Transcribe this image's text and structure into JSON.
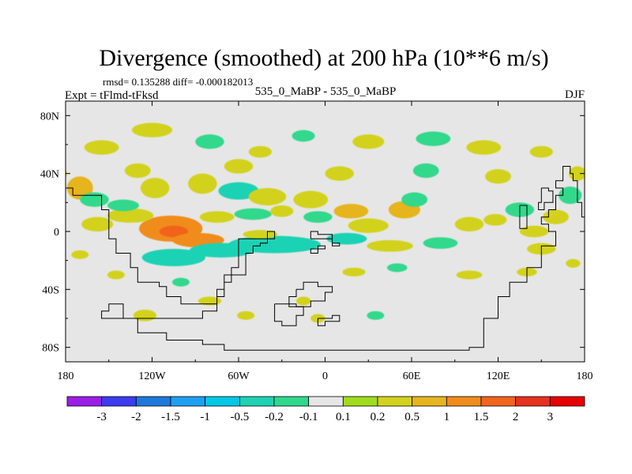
{
  "chart_data": {
    "type": "heatmap",
    "title": "Divergence (smoothed) at 200 hPa (10**6 m/s)",
    "stats_line": "rmsd= 0.135288 diff= -0.000182013",
    "left_label": "Expt = tFlmd-tFksd",
    "center_label": "535_0_MaBP - 535_0_MaBP",
    "right_label": "DJF",
    "x_ticks": [
      "180",
      "120W",
      "60W",
      "0",
      "60E",
      "120E",
      "180"
    ],
    "x_tick_values": [
      -180,
      -120,
      -60,
      0,
      60,
      120,
      180
    ],
    "y_ticks": [
      "80N",
      "40N",
      "0",
      "40S",
      "80S"
    ],
    "y_tick_values": [
      80,
      40,
      0,
      -40,
      -80
    ],
    "xlim": [
      -180,
      180
    ],
    "ylim": [
      -90,
      90
    ],
    "colorbar": {
      "labels": [
        "-3",
        "-2",
        "-1.5",
        "-1",
        "-0.5",
        "-0.2",
        "-0.1",
        "0.1",
        "0.2",
        "0.5",
        "1",
        "1.5",
        "2",
        "3"
      ],
      "colors": [
        "#9b1ee6",
        "#3c3cf0",
        "#1e78dc",
        "#1ea0f0",
        "#00c8e6",
        "#1ed2b4",
        "#30d88c",
        "#e6e6e6",
        "#a0dc1e",
        "#d2d21e",
        "#e6b41e",
        "#f08c1e",
        "#f0641e",
        "#e6321e",
        "#e60000"
      ]
    },
    "field_blobs": [
      {
        "lon": -107,
        "lat": 2,
        "rx": 22,
        "ry": 9,
        "value": 1.2
      },
      {
        "lon": -105,
        "lat": 0,
        "rx": 10,
        "ry": 4,
        "value": 1.6
      },
      {
        "lon": -135,
        "lat": 11,
        "rx": 16,
        "ry": 5,
        "value": 0.4
      },
      {
        "lon": -140,
        "lat": 18,
        "rx": 11,
        "ry": 4,
        "value": -0.15
      },
      {
        "lon": -158,
        "lat": 5,
        "rx": 11,
        "ry": 5,
        "value": 0.4
      },
      {
        "lon": -170,
        "lat": 30,
        "rx": 9,
        "ry": 8,
        "value": 0.6
      },
      {
        "lon": -160,
        "lat": 22,
        "rx": 10,
        "ry": 5,
        "value": -0.15
      },
      {
        "lon": -88,
        "lat": -6,
        "rx": 18,
        "ry": 5,
        "value": 1.0
      },
      {
        "lon": -72,
        "lat": -13,
        "rx": 22,
        "ry": 5,
        "value": -0.3
      },
      {
        "lon": -105,
        "lat": -18,
        "rx": 22,
        "ry": 6,
        "value": -0.3
      },
      {
        "lon": -35,
        "lat": -9,
        "rx": 32,
        "ry": 6,
        "value": -0.3
      },
      {
        "lon": -45,
        "lat": -2,
        "rx": 12,
        "ry": 3,
        "value": 0.3
      },
      {
        "lon": -118,
        "lat": 30,
        "rx": 10,
        "ry": 7,
        "value": 0.4
      },
      {
        "lon": -85,
        "lat": 33,
        "rx": 10,
        "ry": 7,
        "value": 0.4
      },
      {
        "lon": -60,
        "lat": 28,
        "rx": 14,
        "ry": 6,
        "value": -0.3
      },
      {
        "lon": -40,
        "lat": 24,
        "rx": 13,
        "ry": 6,
        "value": 0.4
      },
      {
        "lon": -10,
        "lat": 22,
        "rx": 12,
        "ry": 6,
        "value": 0.3
      },
      {
        "lon": -75,
        "lat": 10,
        "rx": 12,
        "ry": 4,
        "value": 0.3
      },
      {
        "lon": -50,
        "lat": 12,
        "rx": 13,
        "ry": 4,
        "value": -0.15
      },
      {
        "lon": -30,
        "lat": 14,
        "rx": 8,
        "ry": 4,
        "value": 0.3
      },
      {
        "lon": -5,
        "lat": 10,
        "rx": 10,
        "ry": 4,
        "value": -0.15
      },
      {
        "lon": 18,
        "lat": 14,
        "rx": 12,
        "ry": 5,
        "value": 0.5
      },
      {
        "lon": 30,
        "lat": 4,
        "rx": 14,
        "ry": 5,
        "value": 0.4
      },
      {
        "lon": 15,
        "lat": -5,
        "rx": 14,
        "ry": 4,
        "value": -0.3
      },
      {
        "lon": 55,
        "lat": 15,
        "rx": 11,
        "ry": 6,
        "value": 0.5
      },
      {
        "lon": 62,
        "lat": 22,
        "rx": 9,
        "ry": 5,
        "value": -0.15
      },
      {
        "lon": 45,
        "lat": -10,
        "rx": 16,
        "ry": 4,
        "value": 0.3
      },
      {
        "lon": 80,
        "lat": -8,
        "rx": 12,
        "ry": 4,
        "value": -0.15
      },
      {
        "lon": 100,
        "lat": 5,
        "rx": 10,
        "ry": 5,
        "value": 0.4
      },
      {
        "lon": 118,
        "lat": 8,
        "rx": 8,
        "ry": 4,
        "value": 0.3
      },
      {
        "lon": 135,
        "lat": 15,
        "rx": 10,
        "ry": 5,
        "value": -0.15
      },
      {
        "lon": 145,
        "lat": 0,
        "rx": 10,
        "ry": 4,
        "value": 0.3
      },
      {
        "lon": 160,
        "lat": 10,
        "rx": 9,
        "ry": 5,
        "value": 0.4
      },
      {
        "lon": 150,
        "lat": -12,
        "rx": 10,
        "ry": 4,
        "value": 0.3
      },
      {
        "lon": 170,
        "lat": 25,
        "rx": 8,
        "ry": 6,
        "value": -0.15
      },
      {
        "lon": 175,
        "lat": 40,
        "rx": 6,
        "ry": 5,
        "value": 0.3
      },
      {
        "lon": -155,
        "lat": 58,
        "rx": 12,
        "ry": 5,
        "value": 0.3
      },
      {
        "lon": -120,
        "lat": 70,
        "rx": 14,
        "ry": 5,
        "value": 0.3
      },
      {
        "lon": -80,
        "lat": 62,
        "rx": 10,
        "ry": 5,
        "value": -0.15
      },
      {
        "lon": -45,
        "lat": 55,
        "rx": 8,
        "ry": 4,
        "value": 0.3
      },
      {
        "lon": -15,
        "lat": 66,
        "rx": 8,
        "ry": 4,
        "value": -0.15
      },
      {
        "lon": 30,
        "lat": 62,
        "rx": 11,
        "ry": 5,
        "value": 0.3
      },
      {
        "lon": 75,
        "lat": 64,
        "rx": 12,
        "ry": 5,
        "value": -0.15
      },
      {
        "lon": 110,
        "lat": 58,
        "rx": 12,
        "ry": 5,
        "value": 0.3
      },
      {
        "lon": 150,
        "lat": 55,
        "rx": 8,
        "ry": 4,
        "value": 0.3
      },
      {
        "lon": -130,
        "lat": 42,
        "rx": 9,
        "ry": 5,
        "value": 0.3
      },
      {
        "lon": -60,
        "lat": 45,
        "rx": 10,
        "ry": 5,
        "value": 0.3
      },
      {
        "lon": 10,
        "lat": 40,
        "rx": 10,
        "ry": 5,
        "value": 0.3
      },
      {
        "lon": 70,
        "lat": 42,
        "rx": 9,
        "ry": 5,
        "value": -0.15
      },
      {
        "lon": 120,
        "lat": 38,
        "rx": 9,
        "ry": 5,
        "value": 0.3
      },
      {
        "lon": -170,
        "lat": -16,
        "rx": 6,
        "ry": 3,
        "value": 0.3
      },
      {
        "lon": -145,
        "lat": -30,
        "rx": 6,
        "ry": 3,
        "value": 0.3
      },
      {
        "lon": -100,
        "lat": -35,
        "rx": 6,
        "ry": 3,
        "value": -0.15
      },
      {
        "lon": -80,
        "lat": -48,
        "rx": 8,
        "ry": 3,
        "value": 0.3
      },
      {
        "lon": -125,
        "lat": -58,
        "rx": 8,
        "ry": 4,
        "value": 0.3
      },
      {
        "lon": -55,
        "lat": -58,
        "rx": 6,
        "ry": 3,
        "value": 0.3
      },
      {
        "lon": 20,
        "lat": -28,
        "rx": 8,
        "ry": 3,
        "value": 0.3
      },
      {
        "lon": 50,
        "lat": -25,
        "rx": 7,
        "ry": 3,
        "value": -0.15
      },
      {
        "lon": 100,
        "lat": -30,
        "rx": 9,
        "ry": 3,
        "value": 0.3
      },
      {
        "lon": 140,
        "lat": -28,
        "rx": 7,
        "ry": 3,
        "value": 0.3
      },
      {
        "lon": 172,
        "lat": -22,
        "rx": 5,
        "ry": 3,
        "value": 0.3
      },
      {
        "lon": -5,
        "lat": -60,
        "rx": 5,
        "ry": 3,
        "value": 0.3
      },
      {
        "lon": 35,
        "lat": -58,
        "rx": 6,
        "ry": 3,
        "value": -0.15
      },
      {
        "lon": -15,
        "lat": -48,
        "rx": 5,
        "ry": 3,
        "value": 0.3
      }
    ],
    "coastlines": [
      [
        [
          -175,
          25
        ],
        [
          -160,
          25
        ],
        [
          -155,
          15
        ],
        [
          -150,
          10
        ],
        [
          -150,
          -5
        ],
        [
          -145,
          -15
        ],
        [
          -140,
          -15
        ],
        [
          -135,
          -25
        ],
        [
          -130,
          -35
        ],
        [
          -115,
          -38
        ],
        [
          -110,
          -45
        ],
        [
          -100,
          -50
        ],
        [
          -85,
          -50
        ],
        [
          -75,
          -40
        ],
        [
          -70,
          -30
        ],
        [
          -65,
          -25
        ],
        [
          -60,
          -5
        ],
        [
          -55,
          -5
        ],
        [
          -45,
          -5
        ],
        [
          -40,
          0
        ],
        [
          -35,
          0
        ],
        [
          -35,
          -5
        ],
        [
          -40,
          -8
        ],
        [
          -45,
          -10
        ],
        [
          -50,
          -15
        ],
        [
          -55,
          -25
        ],
        [
          -55,
          -30
        ],
        [
          -65,
          -35
        ],
        [
          -70,
          -45
        ],
        [
          -75,
          -55
        ],
        [
          -85,
          -60
        ],
        [
          -110,
          -60
        ],
        [
          -140,
          -50
        ],
        [
          -150,
          -55
        ],
        [
          -155,
          -60
        ],
        [
          -130,
          -70
        ],
        [
          -110,
          -75
        ],
        [
          -85,
          -78
        ],
        [
          -70,
          -82
        ],
        [
          -40,
          -82
        ],
        [
          -10,
          -82
        ],
        [
          30,
          -82
        ],
        [
          70,
          -82
        ],
        [
          100,
          -80
        ],
        [
          110,
          -75
        ],
        [
          110,
          -60
        ],
        [
          120,
          -45
        ],
        [
          128,
          -35
        ],
        [
          140,
          -25
        ],
        [
          150,
          -20
        ],
        [
          150,
          -10
        ],
        [
          160,
          0
        ],
        [
          155,
          5
        ],
        [
          150,
          10
        ],
        [
          155,
          15
        ],
        [
          160,
          25
        ],
        [
          165,
          30
        ],
        [
          160,
          35
        ],
        [
          165,
          45
        ],
        [
          170,
          40
        ],
        [
          172,
          35
        ],
        [
          175,
          20
        ],
        [
          178,
          10
        ],
        [
          180,
          5
        ]
      ],
      [
        [
          -20,
          -40
        ],
        [
          -15,
          -35
        ],
        [
          -5,
          -38
        ],
        [
          5,
          -42
        ],
        [
          0,
          -48
        ],
        [
          -10,
          -52
        ],
        [
          -20,
          -50
        ],
        [
          -25,
          -45
        ],
        [
          -20,
          -40
        ]
      ],
      [
        [
          -35,
          -50
        ],
        [
          -25,
          -52
        ],
        [
          -15,
          -58
        ],
        [
          -20,
          -65
        ],
        [
          -30,
          -62
        ],
        [
          -35,
          -55
        ],
        [
          -35,
          -50
        ]
      ],
      [
        [
          -5,
          -60
        ],
        [
          5,
          -58
        ],
        [
          10,
          -62
        ],
        [
          0,
          -65
        ],
        [
          -5,
          -60
        ]
      ],
      [
        [
          -10,
          -5
        ],
        [
          0,
          -5
        ],
        [
          5,
          -10
        ],
        [
          10,
          -8
        ],
        [
          5,
          -2
        ],
        [
          -5,
          0
        ],
        [
          -10,
          -5
        ]
      ],
      [
        [
          -5,
          -10
        ],
        [
          0,
          -12
        ],
        [
          -5,
          -15
        ],
        [
          -10,
          -12
        ],
        [
          -5,
          -10
        ]
      ],
      [
        [
          150,
          30
        ],
        [
          155,
          28
        ],
        [
          158,
          20
        ],
        [
          152,
          15
        ],
        [
          148,
          20
        ],
        [
          150,
          30
        ]
      ],
      [
        [
          135,
          18
        ],
        [
          140,
          10
        ],
        [
          140,
          2
        ],
        [
          135,
          5
        ],
        [
          135,
          18
        ]
      ],
      [
        [
          -180,
          30
        ],
        [
          -175,
          25
        ]
      ]
    ]
  }
}
